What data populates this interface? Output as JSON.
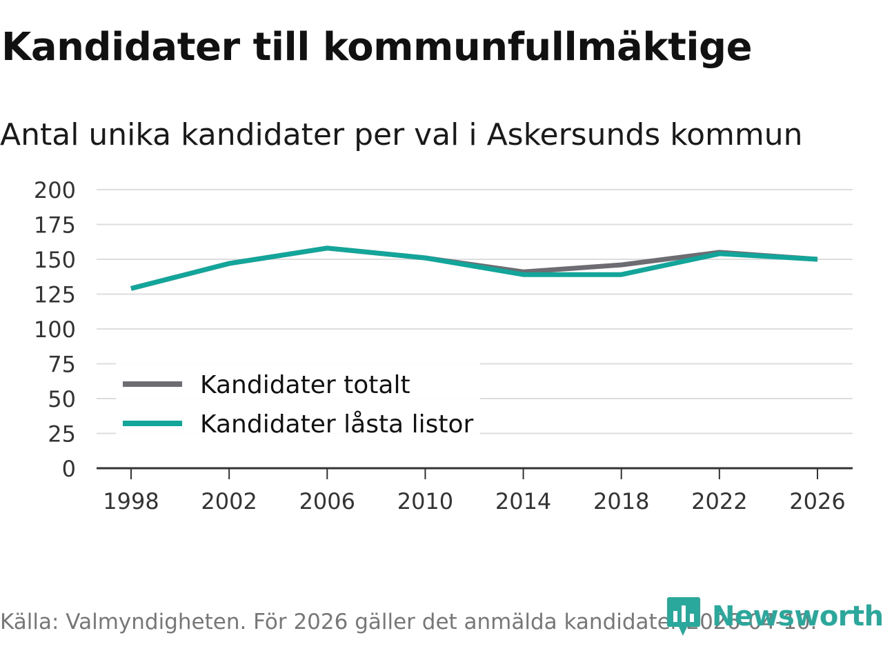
{
  "header": {
    "title": "Kandidater till kommunfullmäktige",
    "subtitle": "Antal unika kandidater per val i Askersunds kommun"
  },
  "footer": {
    "source": "Källa: Valmyndigheten. För 2026 gäller det anmälda kandidater 2026-04-10.",
    "brand": "Newsworthy"
  },
  "colors": {
    "total": "#6d6c72",
    "locked": "#14a59a",
    "grid": "#dddddd",
    "axis": "#333333",
    "brand": "#2aa89b"
  },
  "chart_data": {
    "type": "line",
    "title": "Kandidater till kommunfullmäktige",
    "subtitle": "Antal unika kandidater per val i Askersunds kommun",
    "xlabel": "",
    "ylabel": "",
    "x": [
      1998,
      2002,
      2006,
      2010,
      2014,
      2018,
      2022,
      2026
    ],
    "x_tick_labels": [
      "1998",
      "2002",
      "2006",
      "2010",
      "2014",
      "2018",
      "2022",
      "2026"
    ],
    "ylim": [
      0,
      200
    ],
    "y_ticks": [
      0,
      25,
      50,
      75,
      100,
      125,
      150,
      175,
      200
    ],
    "grid": true,
    "legend_position": "bottom-left",
    "series": [
      {
        "name": "Kandidater totalt",
        "color": "#6d6c72",
        "values": [
          129,
          147,
          158,
          151,
          141,
          146,
          155,
          150
        ]
      },
      {
        "name": "Kandidater låsta listor",
        "color": "#14a59a",
        "values": [
          129,
          147,
          158,
          151,
          139,
          139,
          154,
          150
        ]
      }
    ]
  }
}
